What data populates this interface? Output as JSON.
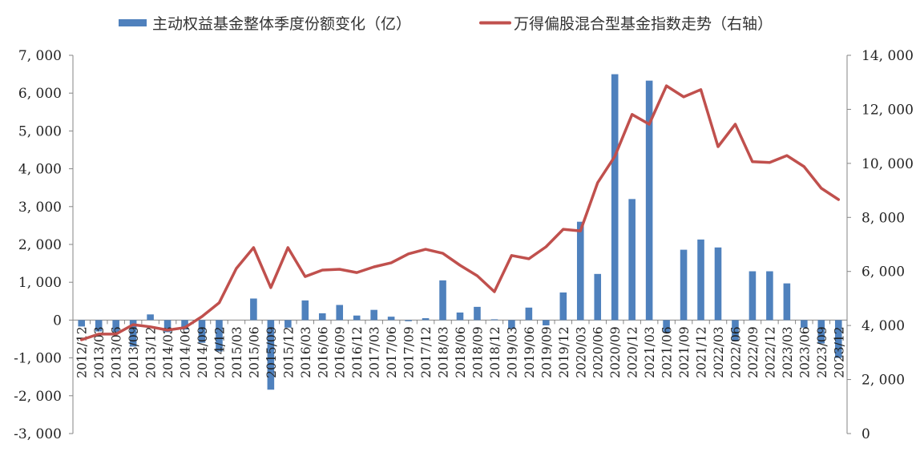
{
  "chart_data": {
    "type": "bar+line",
    "title": "",
    "legend_position": "top",
    "grid": false,
    "categories": [
      "2012/12",
      "2013/03",
      "2013/06",
      "2013/09",
      "2013/12",
      "2014/03",
      "2014/06",
      "2014/09",
      "2014/12",
      "2015/03",
      "2015/06",
      "2015/09",
      "2015/12",
      "2016/03",
      "2016/06",
      "2016/09",
      "2016/12",
      "2017/03",
      "2017/06",
      "2017/09",
      "2017/12",
      "2018/03",
      "2018/06",
      "2018/09",
      "2018/12",
      "2019/03",
      "2019/06",
      "2019/09",
      "2019/12",
      "2020/03",
      "2020/06",
      "2020/09",
      "2020/12",
      "2021/03",
      "2021/06",
      "2021/09",
      "2021/12",
      "2022/03",
      "2022/06",
      "2022/09",
      "2022/12",
      "2023/03",
      "2023/06",
      "2023/09",
      "2023/12"
    ],
    "series": [
      {
        "name": "主动权益基金整体季度份额变化（亿）",
        "type": "bar",
        "axis": "left",
        "color": "#4f81bd",
        "values": [
          -170,
          -300,
          -310,
          -700,
          150,
          -320,
          -250,
          -600,
          -830,
          0,
          570,
          -1840,
          -200,
          520,
          180,
          400,
          120,
          270,
          90,
          -30,
          50,
          1050,
          200,
          350,
          20,
          -230,
          330,
          -140,
          730,
          2600,
          1220,
          6500,
          3200,
          6330,
          -330,
          1860,
          2130,
          1920,
          -560,
          1290,
          1290,
          970,
          -200,
          -620,
          -1000
        ]
      },
      {
        "name": "万得偏股混合型基金指数走势（右轴）",
        "type": "line",
        "axis": "right",
        "color": "#c0504d",
        "values": [
          3470,
          3680,
          3680,
          4030,
          3950,
          3830,
          3920,
          4330,
          4840,
          6110,
          6880,
          5400,
          6880,
          5810,
          6050,
          6080,
          5960,
          6170,
          6320,
          6650,
          6820,
          6670,
          6230,
          5840,
          5250,
          6590,
          6470,
          6910,
          7560,
          7500,
          9280,
          10260,
          11810,
          11450,
          12870,
          12460,
          12730,
          10620,
          11450,
          10060,
          10030,
          10290,
          9880,
          9080,
          8660
        ]
      }
    ],
    "left_axis": {
      "ylim": [
        -3000,
        7000
      ],
      "ticks": [
        7000,
        6000,
        5000,
        4000,
        3000,
        2000,
        1000,
        0,
        -1000,
        -2000,
        -3000
      ],
      "tick_labels": [
        "7, 000",
        "6, 000",
        "5, 000",
        "4, 000",
        "3, 000",
        "2, 000",
        "1, 000",
        "0",
        "-1, 000",
        "-2, 000",
        "-3, 000"
      ]
    },
    "right_axis": {
      "ylim": [
        0,
        14000
      ],
      "ticks": [
        14000,
        12000,
        10000,
        8000,
        6000,
        4000,
        2000,
        0
      ],
      "tick_labels": [
        "14, 000",
        "12, 000",
        "10, 000",
        "8, 000",
        "6, 000",
        "4, 000",
        "2, 000",
        "0"
      ]
    },
    "xlabel": "",
    "ylabel": "",
    "y2label": ""
  },
  "legend": {
    "bar_label": "主动权益基金整体季度份额变化（亿）",
    "line_label": "万得偏股混合型基金指数走势（右轴）"
  },
  "colors": {
    "bar": "#4f81bd",
    "line": "#c0504d",
    "axis": "#868686"
  }
}
